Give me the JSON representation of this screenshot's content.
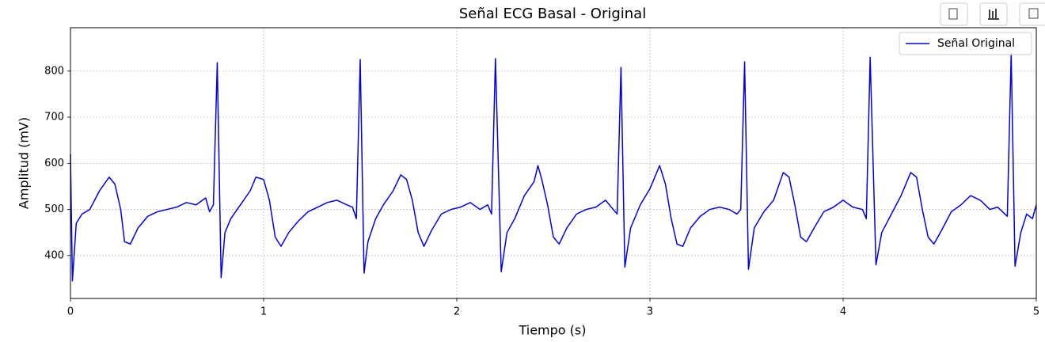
{
  "chart_data": {
    "type": "line",
    "title": "Señal ECG Basal - Original",
    "x_label": "Tiempo (s)",
    "y_label": "Amplitud (mV)",
    "x": [
      0,
      0.01,
      0.03,
      0.06,
      0.1,
      0.15,
      0.2,
      0.23,
      0.26,
      0.28,
      0.31,
      0.35,
      0.4,
      0.45,
      0.5,
      0.55,
      0.6,
      0.65,
      0.7,
      0.72,
      0.74,
      0.76,
      0.78,
      0.8,
      0.83,
      0.88,
      0.93,
      0.96,
      1.0,
      1.03,
      1.06,
      1.09,
      1.13,
      1.18,
      1.23,
      1.28,
      1.33,
      1.38,
      1.43,
      1.46,
      1.48,
      1.5,
      1.52,
      1.54,
      1.58,
      1.62,
      1.67,
      1.71,
      1.74,
      1.77,
      1.8,
      1.83,
      1.87,
      1.92,
      1.97,
      2.02,
      2.07,
      2.12,
      2.16,
      2.18,
      2.2,
      2.23,
      2.26,
      2.3,
      2.35,
      2.4,
      2.42,
      2.44,
      2.47,
      2.5,
      2.53,
      2.57,
      2.62,
      2.67,
      2.72,
      2.77,
      2.81,
      2.83,
      2.85,
      2.87,
      2.9,
      2.95,
      3.0,
      3.05,
      3.08,
      3.11,
      3.14,
      3.17,
      3.21,
      3.26,
      3.31,
      3.36,
      3.41,
      3.45,
      3.47,
      3.49,
      3.51,
      3.54,
      3.59,
      3.64,
      3.69,
      3.72,
      3.75,
      3.78,
      3.81,
      3.85,
      3.9,
      3.95,
      4.0,
      4.05,
      4.1,
      4.12,
      4.14,
      4.17,
      4.2,
      4.25,
      4.3,
      4.35,
      4.38,
      4.41,
      4.44,
      4.47,
      4.51,
      4.56,
      4.61,
      4.66,
      4.71,
      4.76,
      4.8,
      4.85,
      4.87,
      4.89,
      4.92,
      4.95,
      4.98,
      5.0
    ],
    "series": [
      {
        "name": "Señal Original",
        "color": "#0000e6",
        "values": [
          620,
          345,
          470,
          490,
          500,
          540,
          570,
          555,
          500,
          430,
          425,
          460,
          485,
          495,
          500,
          505,
          515,
          510,
          525,
          495,
          510,
          818,
          352,
          450,
          480,
          510,
          540,
          570,
          565,
          520,
          440,
          420,
          450,
          475,
          495,
          505,
          515,
          520,
          510,
          505,
          480,
          825,
          362,
          430,
          480,
          510,
          540,
          575,
          565,
          520,
          450,
          420,
          455,
          490,
          500,
          505,
          515,
          500,
          510,
          490,
          827,
          365,
          450,
          480,
          530,
          560,
          595,
          565,
          510,
          440,
          425,
          460,
          490,
          500,
          505,
          520,
          500,
          490,
          808,
          375,
          460,
          510,
          545,
          595,
          555,
          480,
          425,
          420,
          460,
          485,
          500,
          505,
          500,
          490,
          500,
          820,
          370,
          460,
          495,
          520,
          580,
          570,
          510,
          440,
          430,
          460,
          495,
          505,
          520,
          505,
          500,
          480,
          830,
          380,
          450,
          490,
          530,
          580,
          570,
          500,
          440,
          425,
          455,
          495,
          510,
          530,
          520,
          500,
          505,
          485,
          838,
          377,
          450,
          490,
          480,
          510
        ]
      }
    ],
    "xlim": [
      0,
      5
    ],
    "ylim": [
      307,
      894
    ],
    "xticks": [
      0,
      1,
      2,
      3,
      4,
      5
    ],
    "yticks": [
      400,
      500,
      600,
      700,
      800
    ],
    "grid": true,
    "legend": "upper right"
  }
}
